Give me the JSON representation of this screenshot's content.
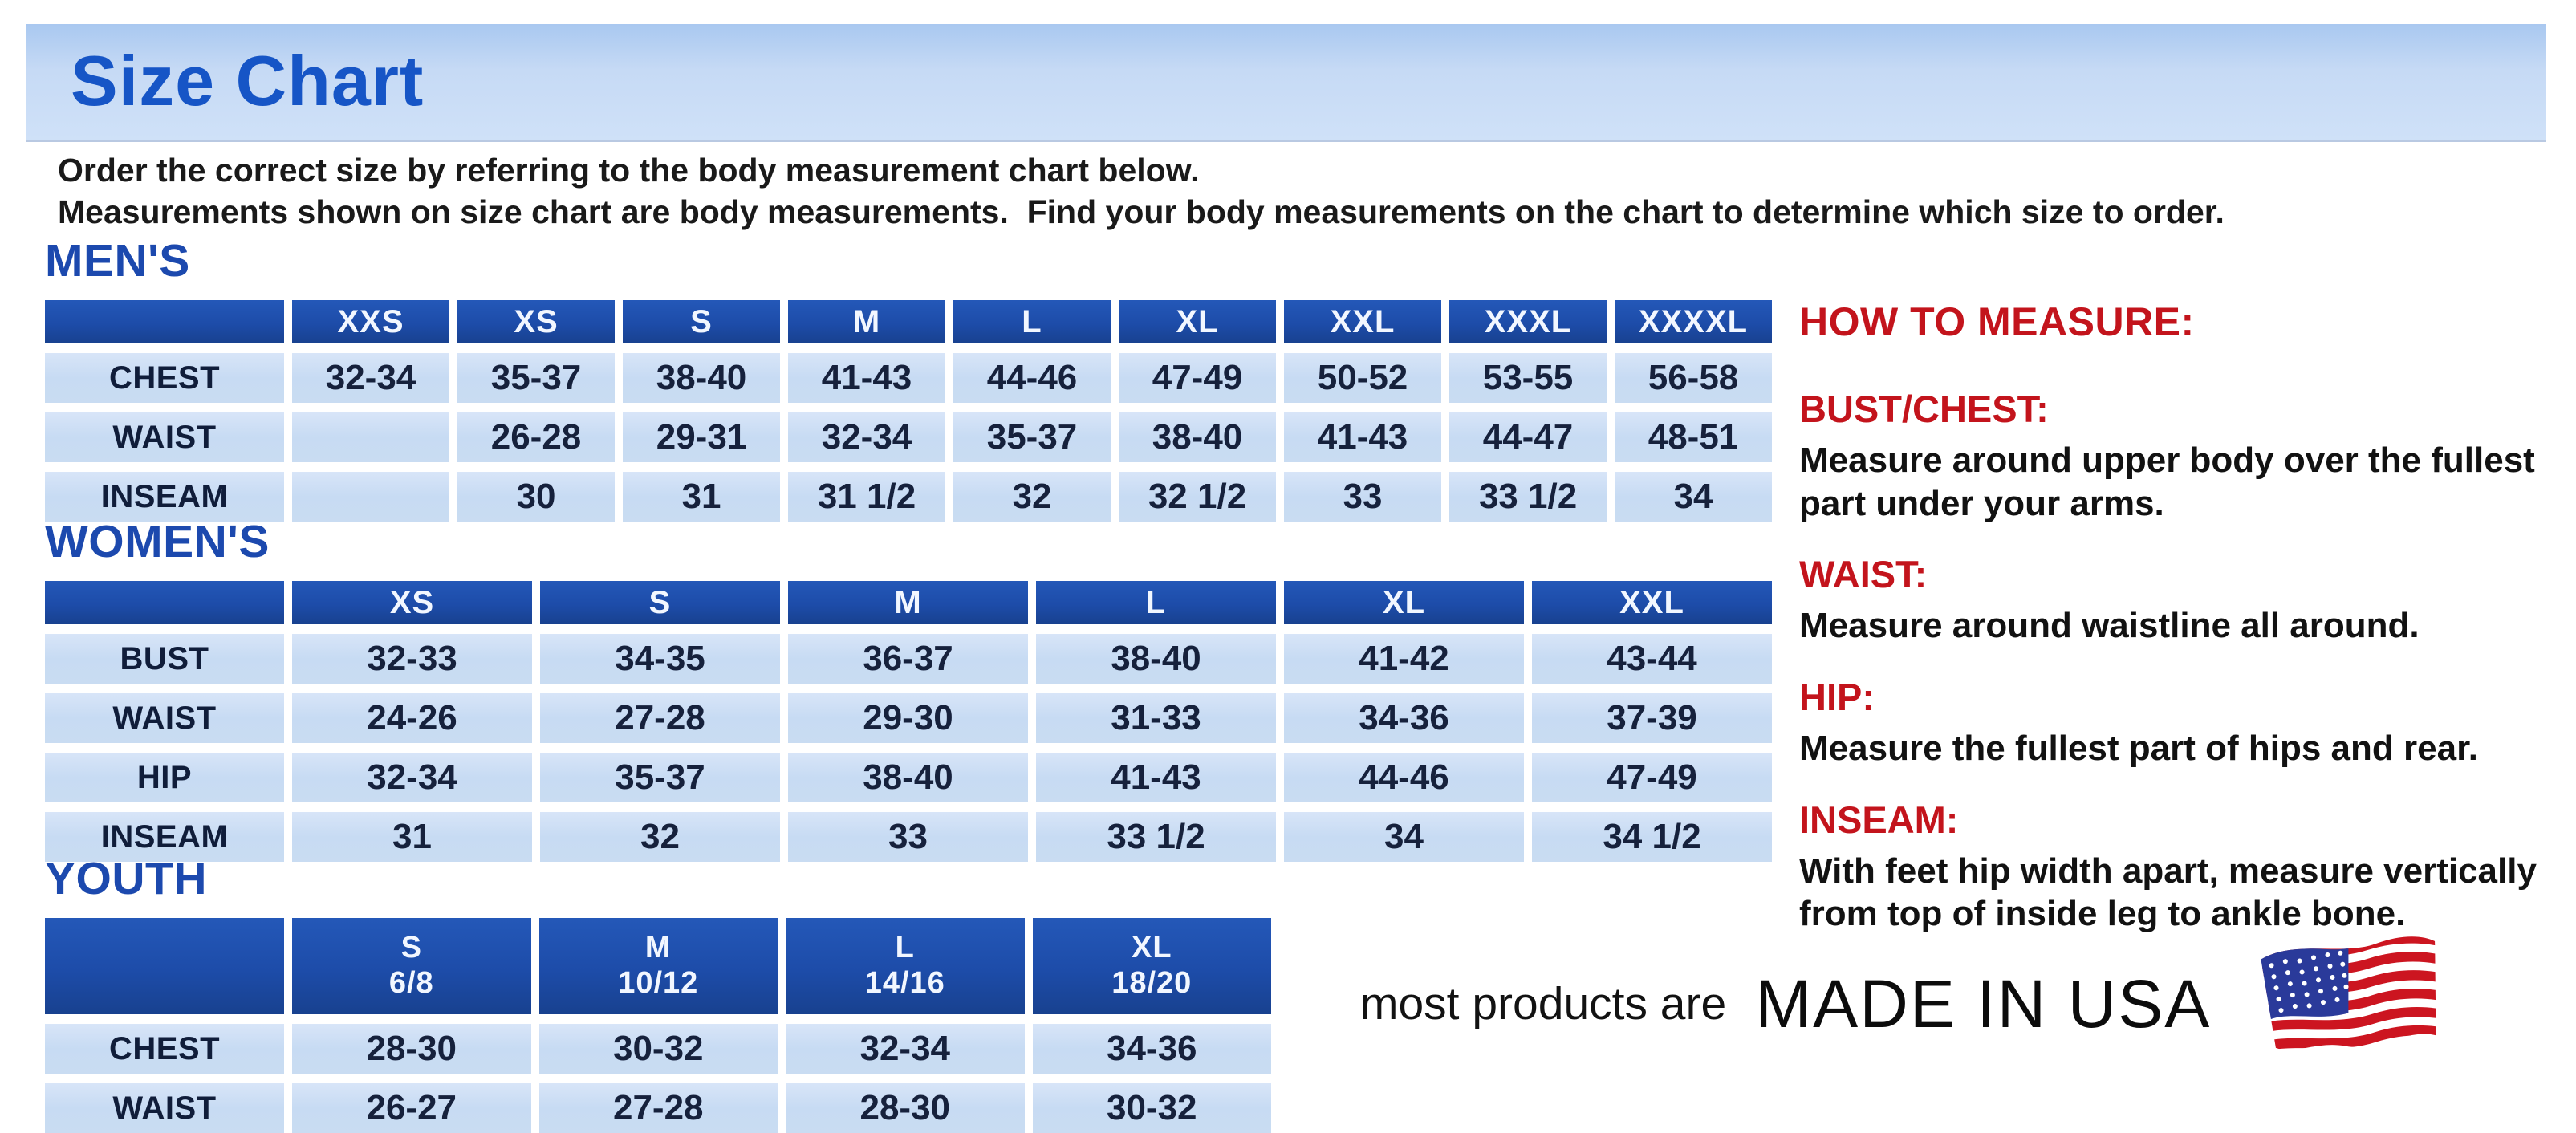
{
  "title": "Size Chart",
  "intro": {
    "line1": "Order the correct size by referring to the body measurement chart below.",
    "line2": "Measurements shown on size chart are body measurements.  Find your body measurements on the chart to determine which size to order."
  },
  "colors": {
    "banner_blue": "#c6daf5",
    "title_blue": "#1655c6",
    "section_heading_blue": "#1c49ae",
    "table_header_blue": "#1d4ca9",
    "table_cell_blue": "#c9dcf2",
    "measure_red": "#c3141c",
    "flag_red": "#cc1520",
    "flag_blue": "#2a3a9a"
  },
  "tables": [
    {
      "id": "mens",
      "section_label": "MEN'S",
      "columns": [
        "XXS",
        "XS",
        "S",
        "M",
        "L",
        "XL",
        "XXL",
        "XXXL",
        "XXXXL"
      ],
      "rows": [
        {
          "label": "CHEST",
          "values": [
            "32-34",
            "35-37",
            "38-40",
            "41-43",
            "44-46",
            "47-49",
            "50-52",
            "53-55",
            "56-58"
          ]
        },
        {
          "label": "WAIST",
          "values": [
            "",
            "26-28",
            "29-31",
            "32-34",
            "35-37",
            "38-40",
            "41-43",
            "44-47",
            "48-51"
          ]
        },
        {
          "label": "INSEAM",
          "values": [
            "",
            "30",
            "31",
            "31 1/2",
            "32",
            "32 1/2",
            "33",
            "33 1/2",
            "34"
          ]
        }
      ]
    },
    {
      "id": "womens",
      "section_label": "WOMEN'S",
      "columns": [
        "XS",
        "S",
        "M",
        "L",
        "XL",
        "XXL"
      ],
      "rows": [
        {
          "label": "BUST",
          "values": [
            "32-33",
            "34-35",
            "36-37",
            "38-40",
            "41-42",
            "43-44"
          ]
        },
        {
          "label": "WAIST",
          "values": [
            "24-26",
            "27-28",
            "29-30",
            "31-33",
            "34-36",
            "37-39"
          ]
        },
        {
          "label": "HIP",
          "values": [
            "32-34",
            "35-37",
            "38-40",
            "41-43",
            "44-46",
            "47-49"
          ]
        },
        {
          "label": "INSEAM",
          "values": [
            "31",
            "32",
            "33",
            "33 1/2",
            "34",
            "34 1/2"
          ]
        }
      ]
    },
    {
      "id": "youth",
      "section_label": "YOUTH",
      "columns": [
        {
          "size": "S",
          "range": "6/8"
        },
        {
          "size": "M",
          "range": "10/12"
        },
        {
          "size": "L",
          "range": "14/16"
        },
        {
          "size": "XL",
          "range": "18/20"
        }
      ],
      "rows": [
        {
          "label": "CHEST",
          "values": [
            "28-30",
            "30-32",
            "32-34",
            "34-36"
          ]
        },
        {
          "label": "WAIST",
          "values": [
            "26-27",
            "27-28",
            "28-30",
            "30-32"
          ]
        }
      ]
    }
  ],
  "how_to_measure": {
    "heading": "HOW TO MEASURE:",
    "items": [
      {
        "label": "BUST/CHEST:",
        "text": "Measure around upper body over the fullest part under your arms."
      },
      {
        "label": "WAIST:",
        "text": "Measure around waistline all around."
      },
      {
        "label": "HIP:",
        "text": "Measure the fullest part of hips and rear."
      },
      {
        "label": "INSEAM:",
        "text": "With feet hip width apart, measure vertically from top of inside leg to ankle bone."
      }
    ]
  },
  "footer": {
    "prefix": "most products are",
    "emphasis": "MADE IN USA",
    "flag_icon": "usa-flag-icon"
  }
}
